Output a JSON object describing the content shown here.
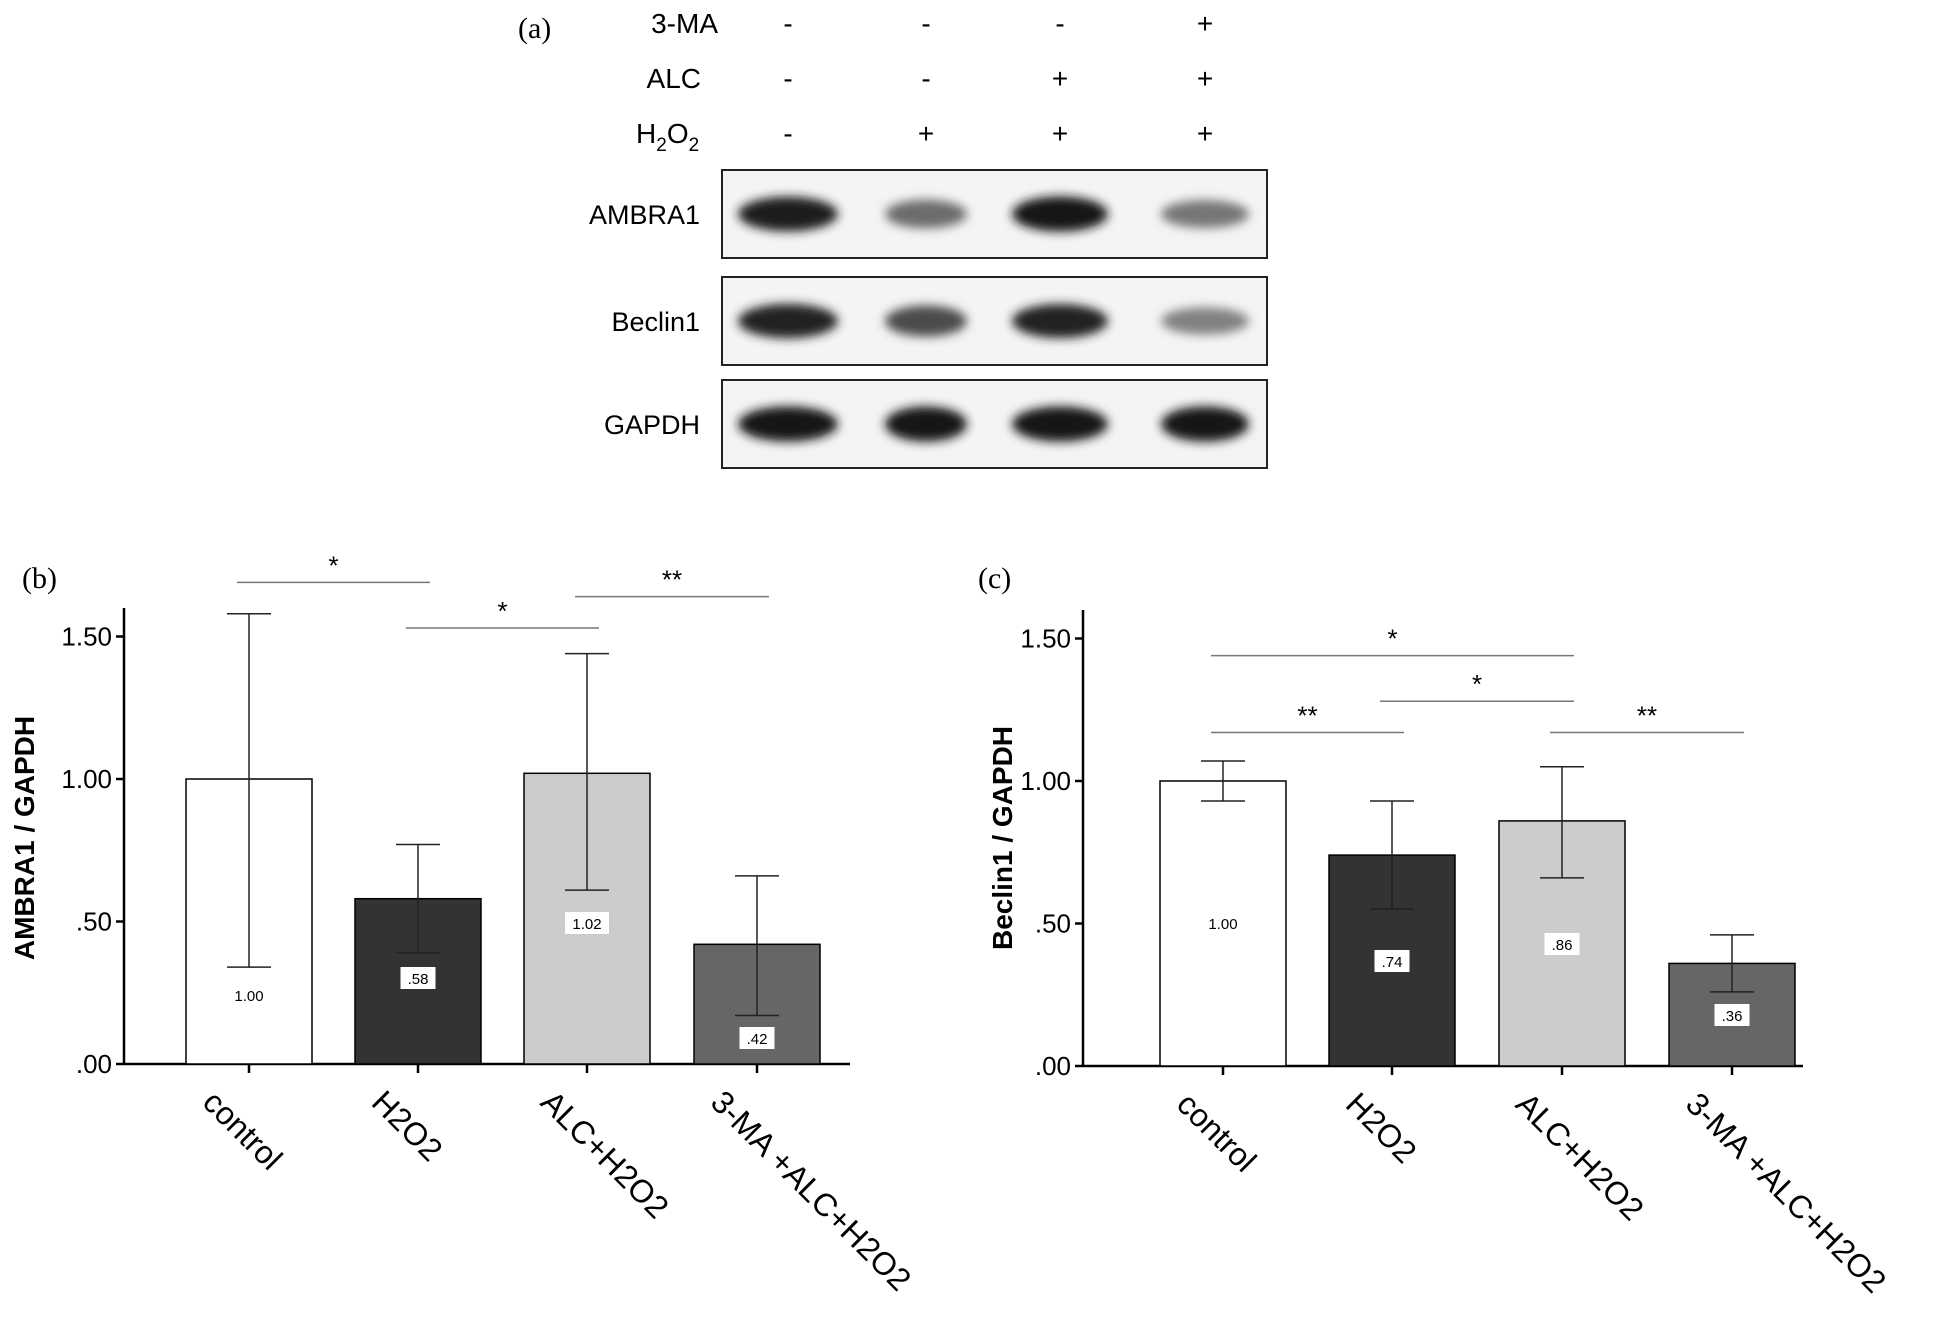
{
  "panel_a": {
    "label": "(a)",
    "treatments": [
      {
        "name": "3-MA",
        "signs": [
          "-",
          "-",
          "-",
          "+"
        ]
      },
      {
        "name": "ALC",
        "signs": [
          "-",
          "-",
          "+",
          "+"
        ]
      },
      {
        "name_main": "H",
        "name_sub1": "2",
        "name_mid": "O",
        "name_sub2": "2",
        "signs": [
          "-",
          "+",
          "+",
          "+"
        ]
      }
    ],
    "blots": [
      {
        "name": "AMBRA1",
        "intensity": [
          0.92,
          0.55,
          0.95,
          0.5
        ]
      },
      {
        "name": "Beclin1",
        "intensity": [
          0.9,
          0.7,
          0.88,
          0.45
        ]
      },
      {
        "name": "GAPDH",
        "intensity": [
          0.95,
          0.95,
          0.95,
          0.95
        ]
      }
    ]
  },
  "chart_data": [
    {
      "panel_label": "(b)",
      "type": "bar",
      "title": "",
      "ylabel": "AMBRA1 / GAPDH",
      "xlabel": "",
      "categories": [
        "control",
        "H2O2",
        "ALC+H2O2",
        "3-MA +ALC+H2O2"
      ],
      "values": [
        1.0,
        0.58,
        1.02,
        0.42
      ],
      "value_labels": [
        "1.00",
        ".58",
        "1.02",
        ".42"
      ],
      "error_low": [
        0.34,
        0.39,
        0.61,
        0.17
      ],
      "error_high": [
        1.58,
        0.77,
        1.44,
        0.66
      ],
      "bar_colors": [
        "#ffffff",
        "#333333",
        "#cccccc",
        "#666666"
      ],
      "ylim": [
        0,
        1.6
      ],
      "yticks": [
        0,
        0.5,
        1.0,
        1.5
      ],
      "ytick_labels": [
        ".00",
        ".50",
        "1.00",
        "1.50"
      ],
      "significance": [
        {
          "from": 0,
          "to": 1,
          "y": 1.69,
          "label": "*"
        },
        {
          "from": 1,
          "to": 2,
          "y": 1.53,
          "label": "*"
        },
        {
          "from": 2,
          "to": 3,
          "y": 1.64,
          "label": "**"
        }
      ],
      "grid": false
    },
    {
      "panel_label": "(c)",
      "type": "bar",
      "title": "",
      "ylabel": "Beclin1 / GAPDH",
      "xlabel": "",
      "categories": [
        "control",
        "H2O2",
        "ALC+H2O2",
        "3-MA +ALC+H2O2"
      ],
      "values": [
        1.0,
        0.74,
        0.86,
        0.36
      ],
      "value_labels": [
        "1.00",
        ".74",
        ".86",
        ".36"
      ],
      "error_low": [
        0.93,
        0.55,
        0.66,
        0.26
      ],
      "error_high": [
        1.07,
        0.93,
        1.05,
        0.46
      ],
      "bar_colors": [
        "#ffffff",
        "#333333",
        "#cccccc",
        "#666666"
      ],
      "ylim": [
        0,
        1.6
      ],
      "yticks": [
        0,
        0.5,
        1.0,
        1.5
      ],
      "ytick_labels": [
        ".00",
        ".50",
        "1.00",
        "1.50"
      ],
      "significance": [
        {
          "from": 0,
          "to": 2,
          "y": 1.44,
          "label": "*"
        },
        {
          "from": 0,
          "to": 1,
          "y": 1.17,
          "label": "**"
        },
        {
          "from": 1,
          "to": 2,
          "y": 1.28,
          "label": "*"
        },
        {
          "from": 2,
          "to": 3,
          "y": 1.17,
          "label": "**"
        }
      ],
      "grid": false
    }
  ]
}
